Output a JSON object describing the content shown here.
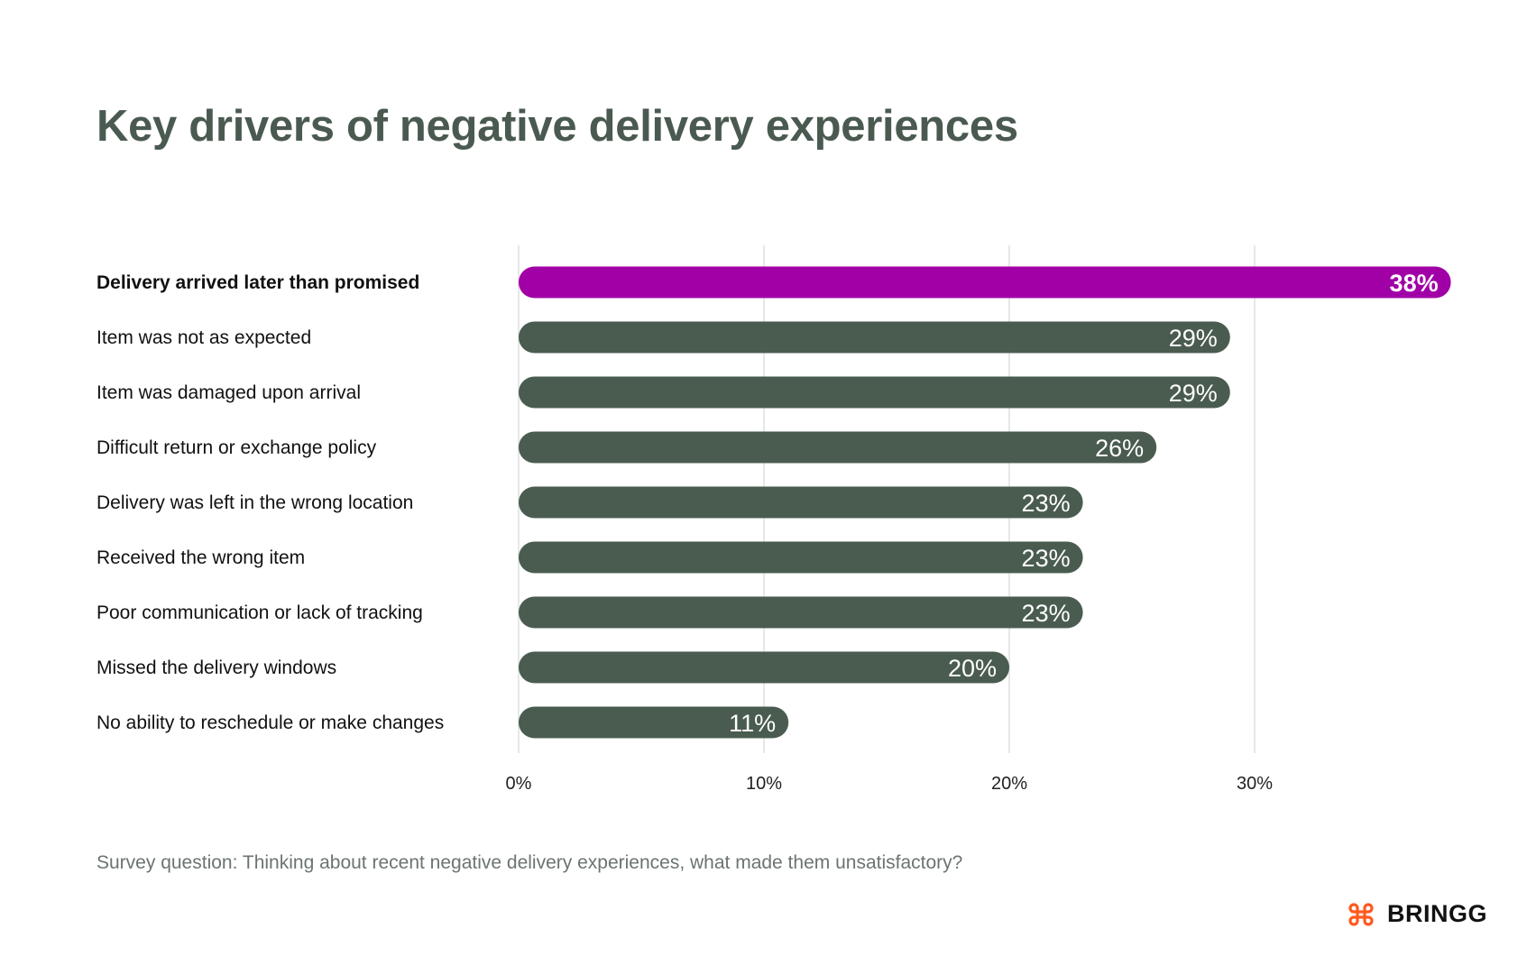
{
  "chart_data": {
    "type": "bar",
    "orientation": "horizontal",
    "title": "Key drivers of negative delivery experiences",
    "categories": [
      "Delivery arrived later than promised",
      "Item was not as expected",
      "Item was damaged upon arrival",
      "Difficult return or exchange policy",
      "Delivery was left in the wrong location",
      "Received the wrong item",
      "Poor communication or lack of tracking",
      "Missed the delivery windows",
      "No ability to reschedule or make changes"
    ],
    "values": [
      38,
      29,
      29,
      26,
      23,
      23,
      23,
      20,
      11
    ],
    "value_labels": [
      "38%",
      "29%",
      "29%",
      "26%",
      "23%",
      "23%",
      "23%",
      "20%",
      "11%"
    ],
    "highlight_index": 0,
    "xlim": [
      0,
      38
    ],
    "xticks": [
      0,
      10,
      20,
      30
    ],
    "xtick_labels": [
      "0%",
      "10%",
      "20%",
      "30%"
    ],
    "grid": "vertical",
    "colors": {
      "highlight": "#a000a6",
      "bar": "#4a5c50",
      "grid": "#d4d8d6",
      "title": "#4a5a50"
    }
  },
  "footnote": "Survey question: Thinking about recent negative delivery experiences, what made them unsatisfactory?",
  "logo": {
    "text": "BRINGG",
    "color": "#ff5a1f"
  }
}
